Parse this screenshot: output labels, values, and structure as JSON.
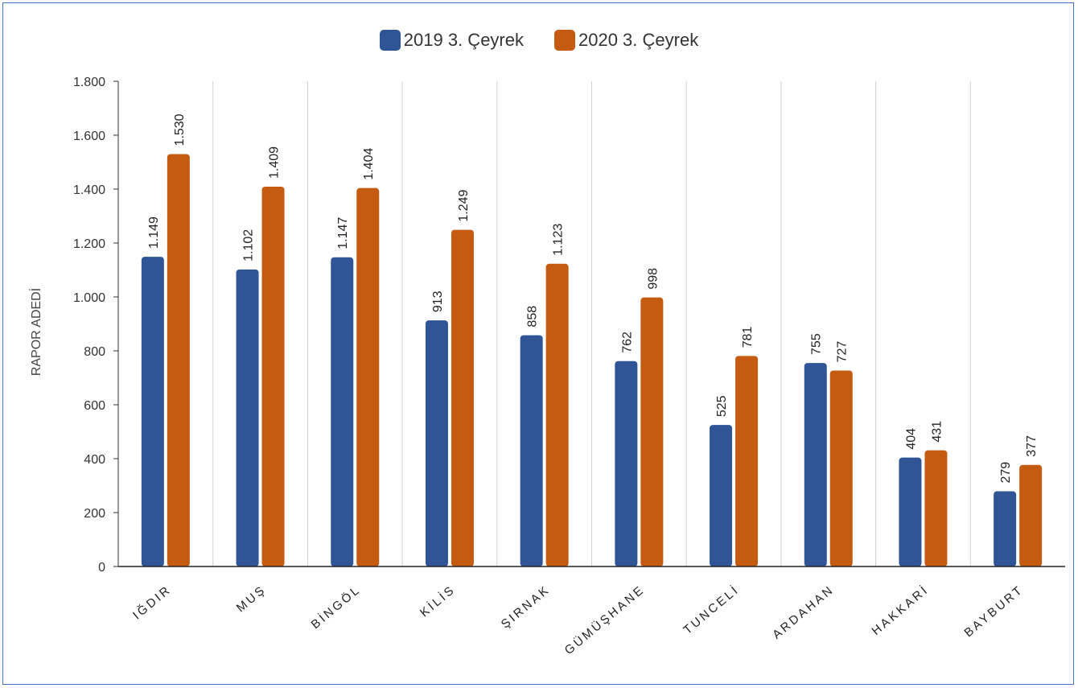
{
  "chart_data": {
    "type": "bar",
    "title": "",
    "xlabel": "",
    "ylabel": "RAPOR ADEDİ",
    "categories": [
      "IĞDIR",
      "MUŞ",
      "BİNGÖL",
      "KİLİS",
      "ŞIRNAK",
      "GÜMÜŞHANE",
      "TUNCELİ",
      "ARDAHAN",
      "HAKKARİ",
      "BAYBURT"
    ],
    "series": [
      {
        "name": "2019 3. Çeyrek",
        "color": "#2f5597",
        "values": [
          1149,
          1102,
          1147,
          913,
          858,
          762,
          525,
          755,
          404,
          279
        ],
        "labels": [
          "1.149",
          "1.102",
          "1.147",
          "913",
          "858",
          "762",
          "525",
          "755",
          "404",
          "279"
        ]
      },
      {
        "name": "2020 3. Çeyrek",
        "color": "#c55a11",
        "values": [
          1530,
          1409,
          1404,
          1249,
          1123,
          998,
          781,
          727,
          431,
          377
        ],
        "labels": [
          "1.530",
          "1.409",
          "1.404",
          "1.249",
          "1.123",
          "998",
          "781",
          "727",
          "431",
          "377"
        ]
      }
    ],
    "ylim": [
      0,
      1800
    ],
    "yticks": [
      0,
      200,
      400,
      600,
      800,
      1000,
      1200,
      1400,
      1600,
      1800
    ],
    "ytick_labels": [
      "0",
      "200",
      "400",
      "600",
      "800",
      "1.000",
      "1.200",
      "1.400",
      "1.600",
      "1.800"
    ],
    "grid": "vertical category separators",
    "legend": "top-center"
  }
}
